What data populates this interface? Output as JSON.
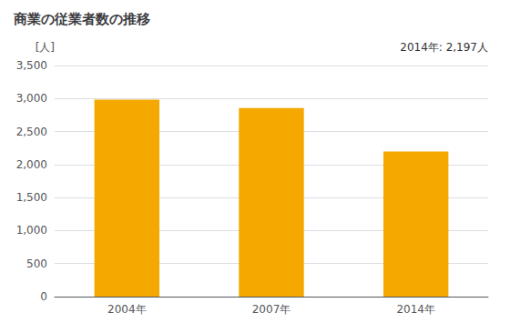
{
  "chart_data": {
    "type": "bar",
    "title": "商業の従業者数の推移",
    "ylabel": "[人]",
    "categories": [
      "2004年",
      "2007年",
      "2014年"
    ],
    "values": [
      2983,
      2855,
      2197
    ],
    "color": "#F5A800",
    "ylim": [
      0,
      3500
    ],
    "yticks": [
      0,
      500,
      {
        "value": 1000,
        "label": "1,000"
      },
      {
        "value": 1500,
        "label": "1,500"
      },
      {
        "value": 2000,
        "label": "2,000"
      },
      {
        "value": 2500,
        "label": "2,500"
      },
      {
        "value": 3000,
        "label": "3,000"
      },
      {
        "value": 3500,
        "label": "3,500"
      }
    ],
    "annotation": "2014年: 2,197人",
    "grid": true
  }
}
